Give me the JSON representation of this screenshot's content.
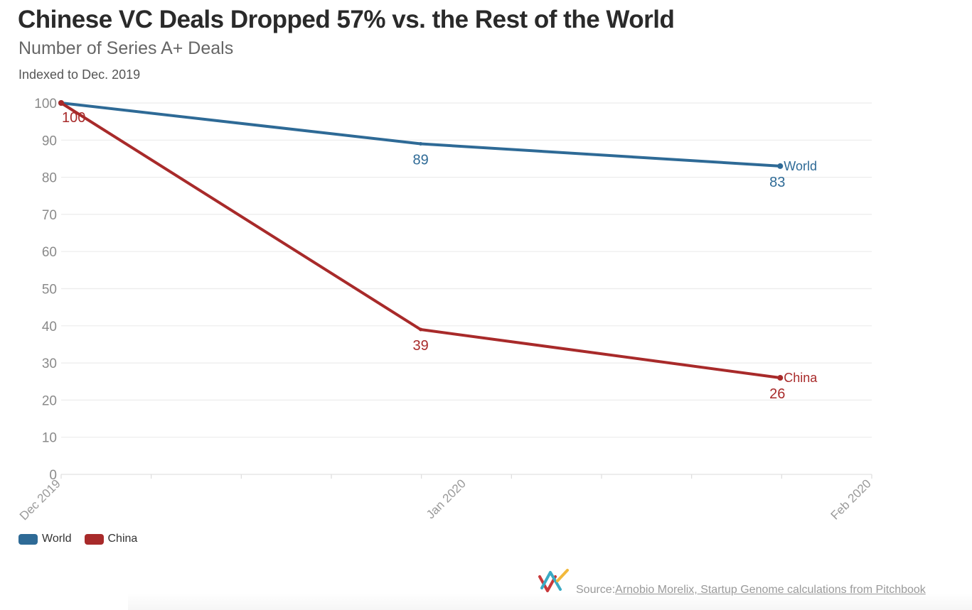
{
  "header": {
    "title": "Chinese VC Deals Dropped 57% vs. the Rest of the World",
    "subtitle": "Number of Series A+ Deals",
    "note": "Indexed to Dec. 2019"
  },
  "legend": {
    "items": [
      {
        "label": "World",
        "color": "#2e6a96"
      },
      {
        "label": "China",
        "color": "#a82a2a"
      }
    ]
  },
  "footer": {
    "source_prefix": "Source: ",
    "source_link": "Arnobio Morelix, Startup Genome calculations from Pitchbook",
    "logo_icon": "flourish-logo-icon"
  },
  "chart_data": {
    "type": "line",
    "title": "Chinese VC Deals Dropped 57% vs. the Rest of the World",
    "subtitle": "Number of Series A+ Deals",
    "ylabel": "Indexed to Dec. 2019",
    "xlabel": "",
    "x_ticks": [
      "Dec 2019",
      "Jan 2020",
      "Feb 2020"
    ],
    "x_range_days": [
      0,
      62
    ],
    "x_tick_days": [
      0,
      31,
      62
    ],
    "minor_tick_count": 10,
    "y_ticks": [
      0,
      10,
      20,
      30,
      40,
      50,
      60,
      70,
      80,
      90,
      100
    ],
    "ylim": [
      0,
      100
    ],
    "grid": true,
    "legend_position": "bottom-left",
    "series": [
      {
        "name": "World",
        "color": "#2e6a96",
        "x_days": [
          0,
          27.5,
          55
        ],
        "values": [
          100,
          89,
          83
        ],
        "point_labels": [
          "",
          "89",
          "83"
        ],
        "end_label": "World"
      },
      {
        "name": "China",
        "color": "#a82a2a",
        "x_days": [
          0,
          27.5,
          55
        ],
        "values": [
          100,
          39,
          26
        ],
        "point_labels": [
          "100",
          "39",
          "26"
        ],
        "end_label": "China"
      }
    ]
  }
}
